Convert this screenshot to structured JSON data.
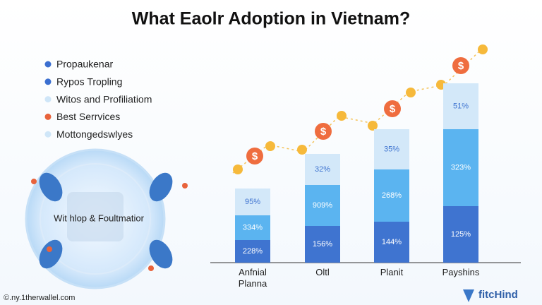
{
  "header": {
    "title": "What Eaolr Adoption in Vietnam?"
  },
  "legend": [
    {
      "label": "Propaukenar",
      "color": "#3b6fd0"
    },
    {
      "label": "Rypos Tropling",
      "color": "#3b6fd0"
    },
    {
      "label": "Witos and Profiliatiom",
      "color": "#cfe6f8"
    },
    {
      "label": "Best Serrvices",
      "color": "#e8633c"
    },
    {
      "label": "Mottongedswlyes",
      "color": "#cfe6f8"
    }
  ],
  "illustration": {
    "label": "Wit hlop & Foultmatior"
  },
  "bars": [
    {
      "category": "Anfnial Planna",
      "segments": [
        "228%",
        "334%",
        "95%"
      ]
    },
    {
      "category": "Oltl",
      "segments": [
        "156%",
        "909%",
        "32%"
      ]
    },
    {
      "category": "Planit",
      "segments": [
        "144%",
        "268%",
        "35%"
      ]
    },
    {
      "category": "Payshins",
      "segments": [
        "125%",
        "323%",
        "51%"
      ]
    }
  ],
  "footer": {
    "source": "©.ny.1therwallel.com",
    "logo": "fitcHind"
  }
}
